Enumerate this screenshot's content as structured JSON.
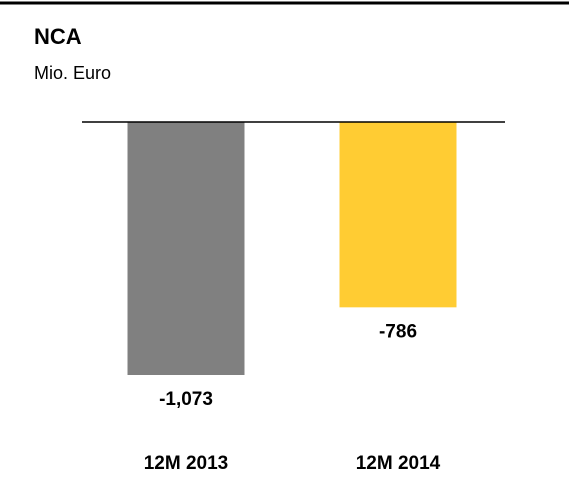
{
  "chart_data": {
    "type": "bar",
    "title": "NCA",
    "subtitle": "Mio. Euro",
    "categories": [
      "12M 2013",
      "12M 2014"
    ],
    "values": [
      -1073,
      -786
    ],
    "value_labels": [
      "-1,073",
      "-786"
    ],
    "colors": [
      "#808080",
      "#ffcc33"
    ]
  }
}
